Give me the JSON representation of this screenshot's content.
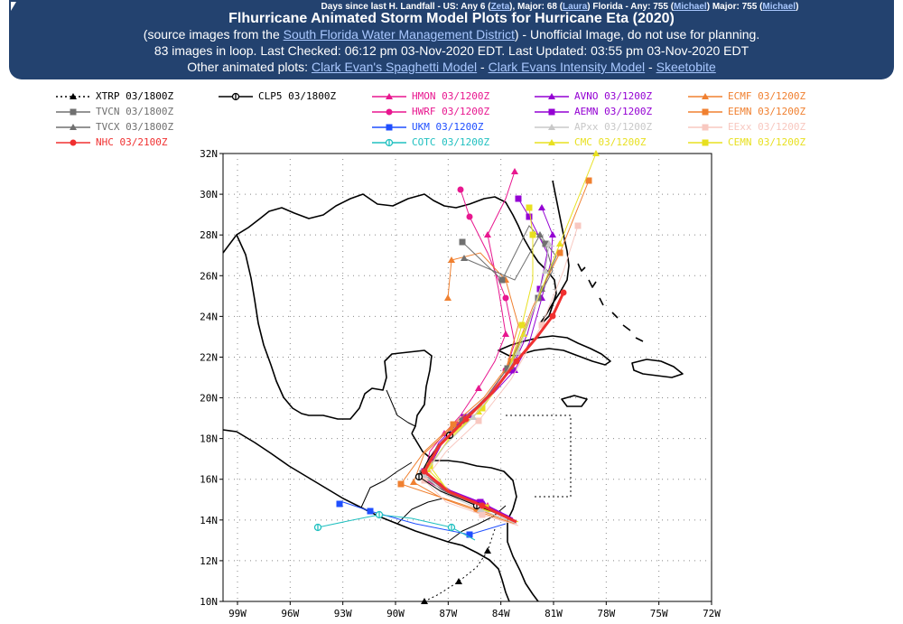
{
  "banner": {
    "top_prefix": "Days since last H. Landfall - US: Any 6 (",
    "top_us_storm": "Zeta",
    "top_mid1": "), Major: 68 (",
    "top_major_storm": "Laura",
    "top_mid2": ") Florida - Any: 755 (",
    "top_fl_storm": "Michael",
    "top_mid3": ") Major: 755 (",
    "top_fl_major_storm": "Michael",
    "top_end": ")",
    "title": "Flhurricane Animated Storm Model Plots for Hurricane Eta (2020)",
    "source_prefix": "(source images from the ",
    "source_link": "South Florida Water Management District",
    "source_suffix": ") - Unofficial Image, do not use for planning.",
    "status": "83 images in loop. Last Checked: 06:12 pm 03-Nov-2020 EDT. Last Updated: 03:55 pm 03-Nov-2020 EDT",
    "other_label": "Other animated plots: ",
    "link_spaghetti": "Clark Evan's Spaghetti Model",
    "sep1": " - ",
    "link_intensity": "Clark Evans Intensity Model",
    "sep2": " - ",
    "link_skeeto": "Skeetobite"
  },
  "legend": [
    {
      "label": "XTRP 03/1800Z",
      "color": "#000000",
      "marker": "triangle",
      "dotted": true
    },
    {
      "label": "CLP5 03/1800Z",
      "color": "#000000",
      "marker": "circle-bar"
    },
    {
      "label": "HMON 03/1200Z",
      "color": "#e8178f",
      "marker": "triangle"
    },
    {
      "label": "AVNO 03/1200Z",
      "color": "#9400d3",
      "marker": "triangle"
    },
    {
      "label": "ECMF 03/1200Z",
      "color": "#f08030",
      "marker": "triangle"
    },
    {
      "label": "TVCN 03/1800Z",
      "color": "#707070",
      "marker": "square"
    },
    {
      "label": "HWRF 03/1200Z",
      "color": "#e8178f",
      "marker": "circle"
    },
    {
      "label": "AEMN 03/1200Z",
      "color": "#9400d3",
      "marker": "square"
    },
    {
      "label": "EEMN 03/1200Z",
      "color": "#f08030",
      "marker": "square"
    },
    {
      "label": "TVCX 03/1800Z",
      "color": "#707070",
      "marker": "triangle"
    },
    {
      "label": "UKM 03/1200Z",
      "color": "#1f4fff",
      "marker": "square"
    },
    {
      "label": "APxx 03/1200Z",
      "color": "#c8c8c8",
      "marker": "triangle"
    },
    {
      "label": "EExx 03/1200Z",
      "color": "#f8c8c0",
      "marker": "square"
    },
    {
      "label": "NHC 03/2100Z",
      "color": "#f03030",
      "marker": "circle"
    },
    {
      "label": "COTC 03/1200Z",
      "color": "#20c0c0",
      "marker": "circle-bar"
    },
    {
      "label": "CMC 03/1200Z",
      "color": "#e8e020",
      "marker": "triangle"
    },
    {
      "label": "CEMN 03/1200Z",
      "color": "#e8e020",
      "marker": "square"
    }
  ],
  "axes": {
    "lat_labels": [
      "32N",
      "30N",
      "28N",
      "26N",
      "24N",
      "22N",
      "20N",
      "18N",
      "16N",
      "14N",
      "12N",
      "10N"
    ],
    "lon_labels": [
      "99W",
      "96W",
      "93W",
      "90W",
      "87W",
      "84W",
      "81W",
      "78W",
      "75W",
      "72W"
    ]
  }
}
